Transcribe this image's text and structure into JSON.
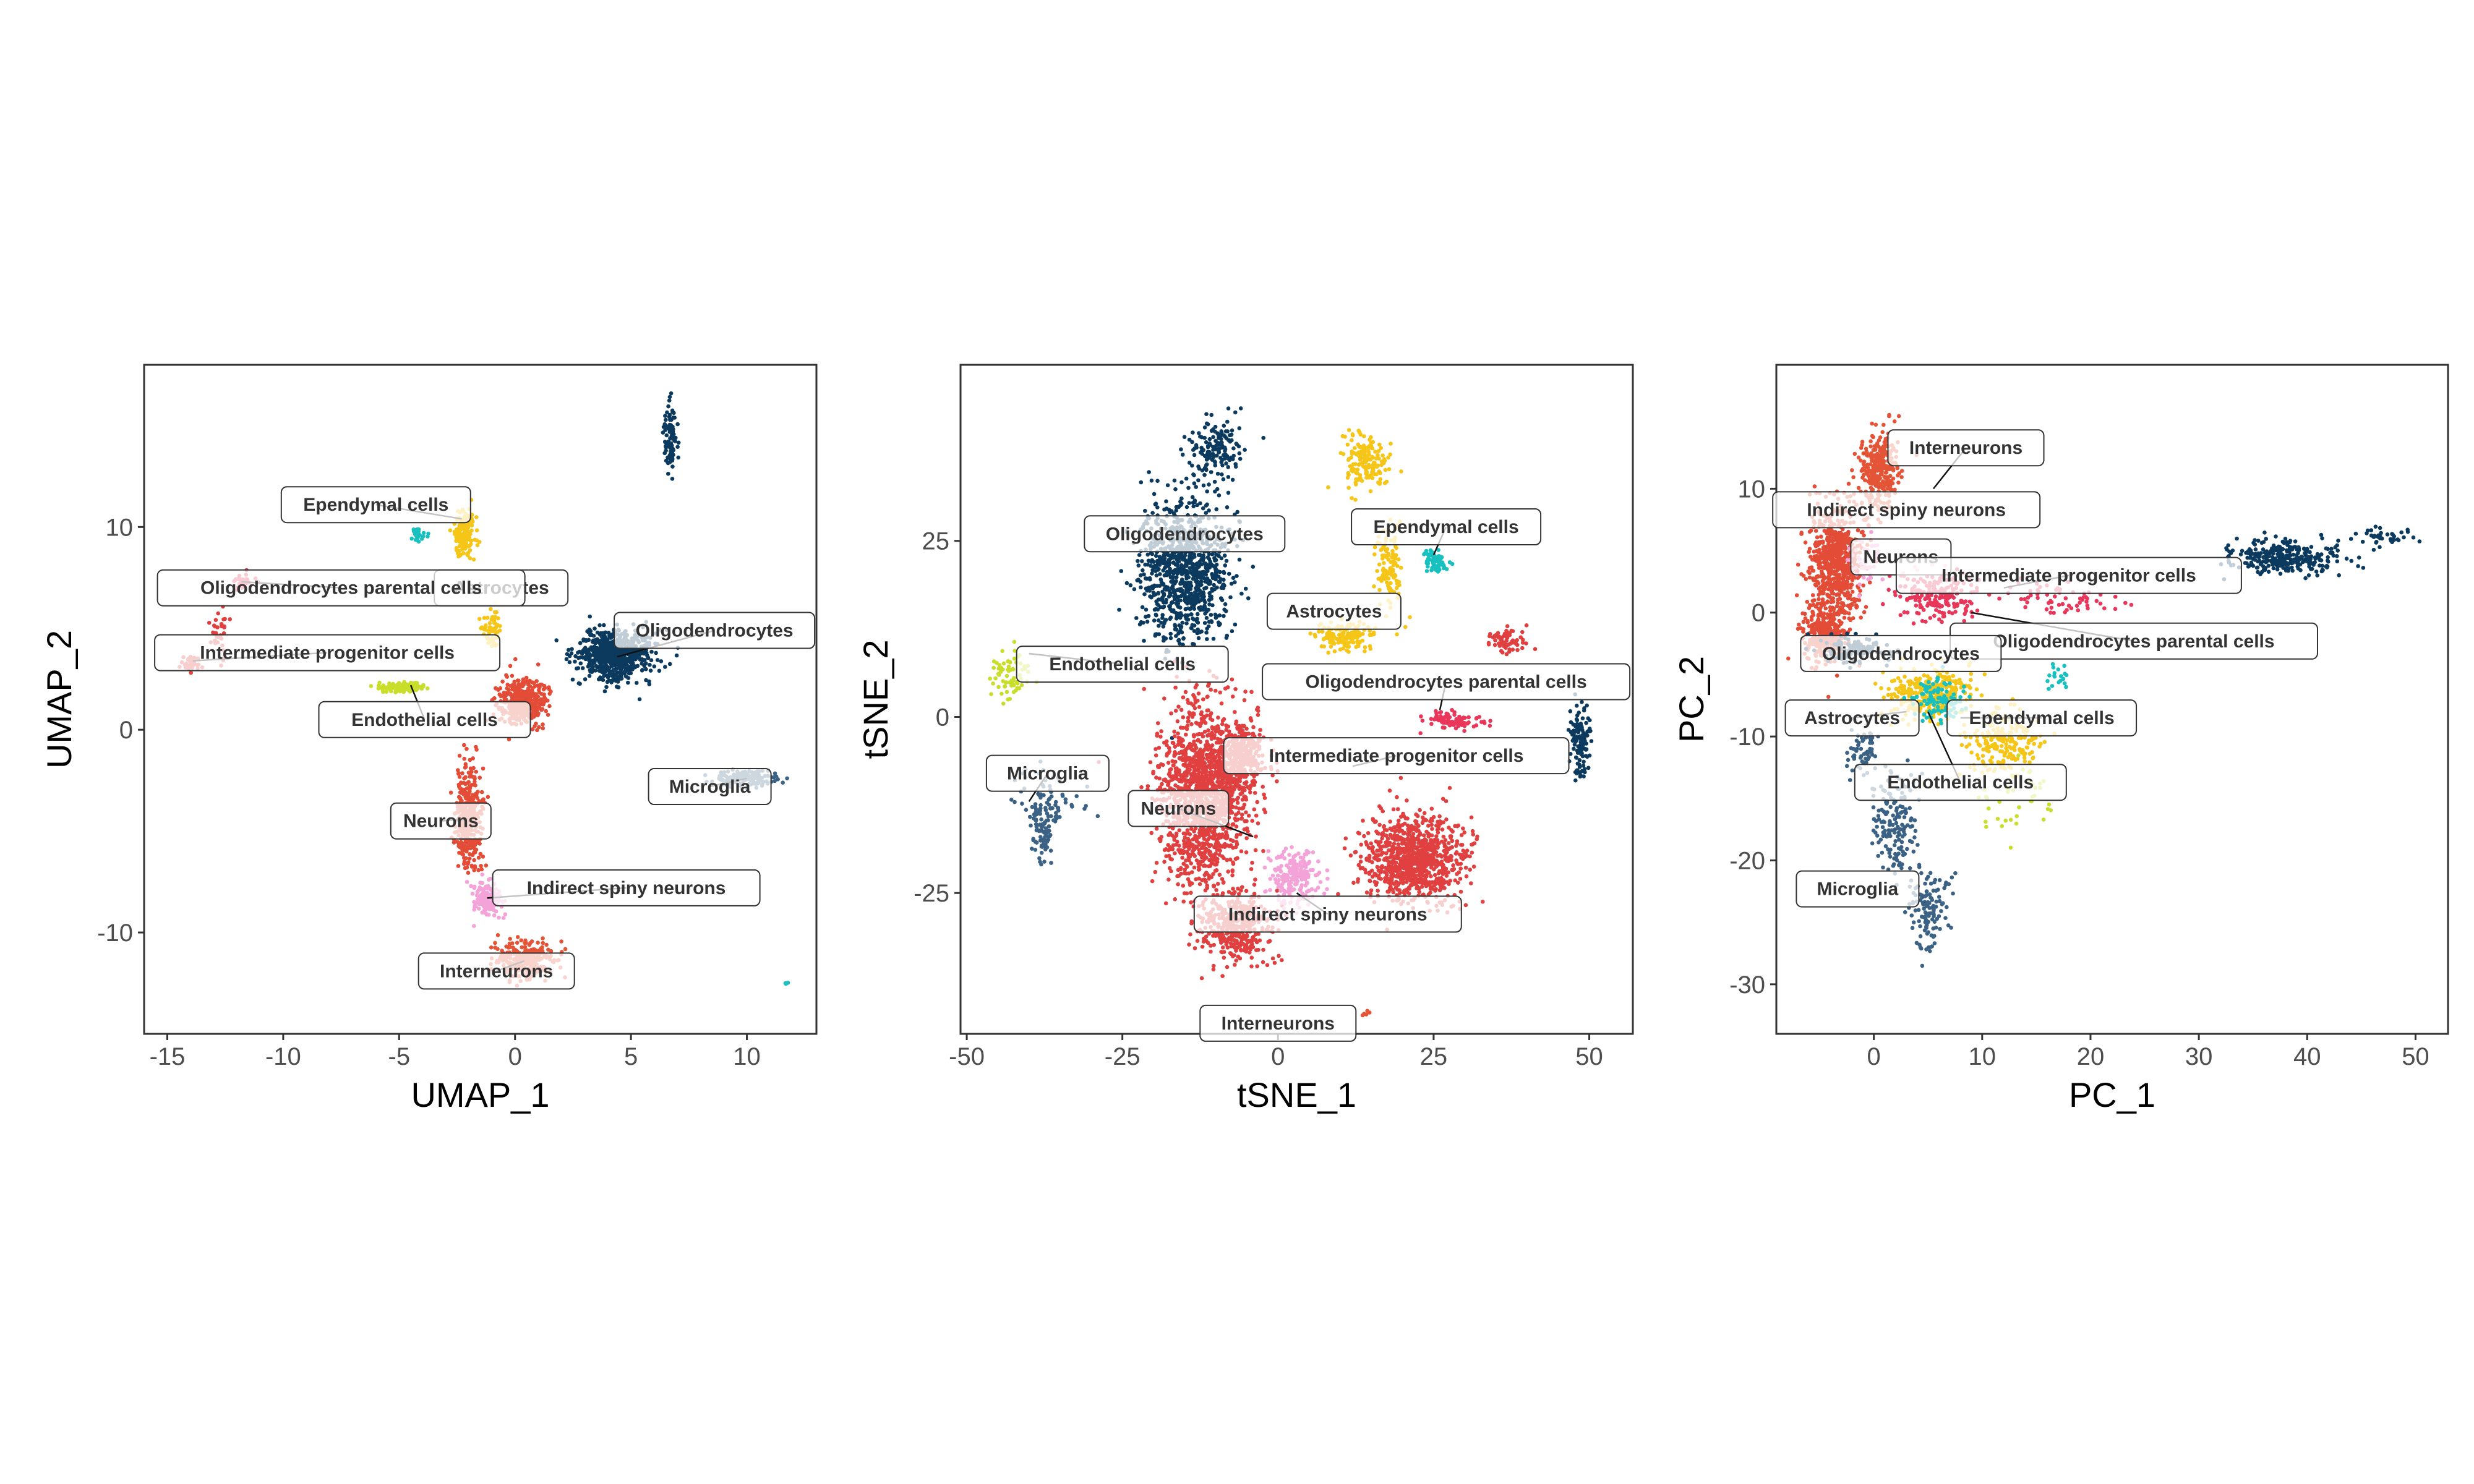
{
  "colors": {
    "Oligodendrocytes": "#0b3a5e",
    "Astrocytes": "#f5c518",
    "Ependymal cells": "#18c0c0",
    "Oligodendrocytes parental cells": "#e8375a",
    "Intermediate progenitor cells": "#e04040",
    "Endothelial cells": "#c8de2a",
    "Neurons": "#e34c36",
    "Indirect spiny neurons": "#f4a3d8",
    "Interneurons": "#e45538",
    "Microglia": "#3b6285"
  },
  "chart_data": [
    {
      "type": "scatter",
      "xlabel": "UMAP_1",
      "ylabel": "UMAP_2",
      "xlim": [
        -16,
        13
      ],
      "ylim": [
        -15,
        18
      ],
      "xticks": [
        "-15",
        "-10",
        "-5",
        "0",
        "5",
        "10"
      ],
      "yticks": [
        "-10",
        "0",
        "10"
      ],
      "clusters": [
        {
          "name": "Oligodendrocytes",
          "center": [
            4.3,
            3.7
          ],
          "spread": [
            1.6,
            1.2
          ],
          "n": 700
        },
        {
          "name": "Oligodendrocytes",
          "center": [
            6.7,
            14.5
          ],
          "spread": [
            0.25,
            1.6
          ],
          "n": 90
        },
        {
          "name": "Astrocytes",
          "center": [
            -2.2,
            9.7
          ],
          "spread": [
            0.45,
            1.3
          ],
          "n": 180
        },
        {
          "name": "Astrocytes",
          "center": [
            -1.0,
            5.0
          ],
          "spread": [
            0.4,
            1.1
          ],
          "n": 60
        },
        {
          "name": "Ependymal cells",
          "center": [
            -4.2,
            9.6
          ],
          "spread": [
            0.35,
            0.3
          ],
          "n": 30
        },
        {
          "name": "Oligodendrocytes parental cells",
          "center": [
            -11.8,
            7.3
          ],
          "spread": [
            0.5,
            0.3
          ],
          "n": 25
        },
        {
          "name": "Intermediate progenitor cells",
          "center": [
            -14.0,
            3.3
          ],
          "spread": [
            0.35,
            0.35
          ],
          "n": 40
        },
        {
          "name": "Intermediate progenitor cells",
          "center": [
            -12.8,
            4.8
          ],
          "spread": [
            0.4,
            1.3
          ],
          "n": 35
        },
        {
          "name": "Endothelial cells",
          "center": [
            -4.8,
            2.1
          ],
          "spread": [
            1.0,
            0.25
          ],
          "n": 120
        },
        {
          "name": "Neurons",
          "center": [
            0.3,
            1.4
          ],
          "spread": [
            1.0,
            1.1
          ],
          "n": 420
        },
        {
          "name": "Neurons",
          "center": [
            -2.0,
            -4.2
          ],
          "spread": [
            0.55,
            2.4
          ],
          "n": 380
        },
        {
          "name": "Indirect spiny neurons",
          "center": [
            -1.2,
            -8.4
          ],
          "spread": [
            0.6,
            0.9
          ],
          "n": 140
        },
        {
          "name": "Interneurons",
          "center": [
            0.5,
            -11.4
          ],
          "spread": [
            1.2,
            0.9
          ],
          "n": 280
        },
        {
          "name": "Microglia",
          "center": [
            10.0,
            -2.4
          ],
          "spread": [
            1.4,
            0.4
          ],
          "n": 150
        },
        {
          "name": "Ependymal cells",
          "center": [
            11.7,
            -12.5
          ],
          "spread": [
            0.06,
            0.06
          ],
          "n": 3
        }
      ],
      "labels": [
        {
          "text": "Ependymal cells",
          "pos": [
            -6.0,
            11.1
          ],
          "target": [
            -2.3,
            10.4
          ]
        },
        {
          "text": "Astrocytes",
          "pos": [
            -0.6,
            7.0
          ],
          "target": [
            -1.4,
            6.8
          ]
        },
        {
          "text": "Oligodendrocytes parental cells",
          "pos": [
            -7.5,
            7.0
          ],
          "target": [
            -11.8,
            7.3
          ]
        },
        {
          "text": "Oligodendrocytes",
          "pos": [
            8.6,
            4.9
          ],
          "target": [
            4.4,
            3.6
          ]
        },
        {
          "text": "Intermediate progenitor cells",
          "pos": [
            -8.1,
            3.8
          ],
          "target": [
            -13.9,
            3.4
          ]
        },
        {
          "text": "Endothelial cells",
          "pos": [
            -3.9,
            0.5
          ],
          "target": [
            -4.5,
            2.2
          ]
        },
        {
          "text": "Microglia",
          "pos": [
            8.4,
            -2.8
          ],
          "target": [
            10.0,
            -2.4
          ]
        },
        {
          "text": "Neurons",
          "pos": [
            -3.2,
            -4.5
          ],
          "target": [
            -2.1,
            -4.4
          ]
        },
        {
          "text": "Indirect spiny neurons",
          "pos": [
            4.8,
            -7.8
          ],
          "target": [
            -1.2,
            -8.3
          ]
        },
        {
          "text": "Interneurons",
          "pos": [
            -0.8,
            -11.9
          ],
          "target": [
            0.4,
            -11.4
          ]
        }
      ]
    },
    {
      "type": "scatter",
      "xlabel": "tSNE_1",
      "ylabel": "tSNE_2",
      "xlim": [
        -51,
        57
      ],
      "ylim": [
        -45,
        50
      ],
      "xticks": [
        "-50",
        "-25",
        "0",
        "25",
        "50"
      ],
      "yticks": [
        "-25",
        "0",
        "25"
      ],
      "clusters": [
        {
          "name": "Oligodendrocytes",
          "center": [
            -15.0,
            21.0
          ],
          "spread": [
            7.0,
            10.0
          ],
          "n": 1000
        },
        {
          "name": "Oligodendrocytes",
          "center": [
            -10.0,
            38.0
          ],
          "spread": [
            4.0,
            4.0
          ],
          "n": 150
        },
        {
          "name": "Oligodendrocytes",
          "center": [
            48.5,
            -3.0
          ],
          "spread": [
            1.8,
            5.0
          ],
          "n": 120
        },
        {
          "name": "Astrocytes",
          "center": [
            14.0,
            36.0
          ],
          "spread": [
            3.5,
            4.0
          ],
          "n": 160
        },
        {
          "name": "Astrocytes",
          "center": [
            18.0,
            21.0
          ],
          "spread": [
            2.0,
            6.0
          ],
          "n": 110
        },
        {
          "name": "Astrocytes",
          "center": [
            11.0,
            11.5
          ],
          "spread": [
            5.0,
            2.0
          ],
          "n": 140
        },
        {
          "name": "Ependymal cells",
          "center": [
            25.5,
            22.0
          ],
          "spread": [
            1.8,
            1.5
          ],
          "n": 70
        },
        {
          "name": "Oligodendrocytes parental cells",
          "center": [
            28.0,
            -0.5
          ],
          "spread": [
            4.5,
            1.3
          ],
          "n": 90
        },
        {
          "name": "Intermediate progenitor cells",
          "center": [
            37.0,
            11.0
          ],
          "spread": [
            3.0,
            2.0
          ],
          "n": 70
        },
        {
          "name": "Intermediate progenitor cells",
          "center": [
            -12.0,
            -11.0
          ],
          "spread": [
            7.0,
            12.0
          ],
          "n": 1500
        },
        {
          "name": "Intermediate progenitor cells",
          "center": [
            -6.0,
            -6.0
          ],
          "spread": [
            4.0,
            5.0
          ],
          "n": 300
        },
        {
          "name": "Intermediate progenitor cells",
          "center": [
            22.0,
            -20.0
          ],
          "spread": [
            8.0,
            6.0
          ],
          "n": 900
        },
        {
          "name": "Intermediate progenitor cells",
          "center": [
            -7.0,
            -30.0
          ],
          "spread": [
            5.5,
            5.0
          ],
          "n": 400
        },
        {
          "name": "Interneurons",
          "center": [
            14.0,
            -42.0
          ],
          "spread": [
            0.6,
            0.6
          ],
          "n": 6
        },
        {
          "name": "Indirect spiny neurons",
          "center": [
            3.0,
            -23.0
          ],
          "spread": [
            4.0,
            4.0
          ],
          "n": 220
        },
        {
          "name": "Endothelial cells",
          "center": [
            -43.0,
            6.0
          ],
          "spread": [
            3.0,
            3.5
          ],
          "n": 70
        },
        {
          "name": "Microglia",
          "center": [
            -37.0,
            -12.0
          ],
          "spread": [
            5.5,
            5.0
          ],
          "n": 70
        },
        {
          "name": "Microglia",
          "center": [
            -38.0,
            -16.0
          ],
          "spread": [
            1.6,
            5.0
          ],
          "n": 80
        }
      ],
      "labels": [
        {
          "text": "Oligodendrocytes",
          "pos": [
            -15.0,
            26.0
          ],
          "target": [
            -13.0,
            24.0
          ]
        },
        {
          "text": "Ependymal cells",
          "pos": [
            27.0,
            27.0
          ],
          "target": [
            25.0,
            23.0
          ]
        },
        {
          "text": "Astrocytes",
          "pos": [
            9.0,
            15.0
          ],
          "target": [
            10.0,
            12.0
          ]
        },
        {
          "text": "Endothelial cells",
          "pos": [
            -25.0,
            7.5
          ],
          "target": [
            -40.0,
            9.0
          ]
        },
        {
          "text": "Oligodendrocytes parental cells",
          "pos": [
            27.0,
            5.0
          ],
          "target": [
            26.0,
            1.0
          ]
        },
        {
          "text": "Intermediate progenitor cells",
          "pos": [
            19.0,
            -5.5
          ],
          "target": [
            12.0,
            -7.0
          ]
        },
        {
          "text": "Microglia",
          "pos": [
            -37.0,
            -8.0
          ],
          "target": [
            -40.0,
            -12.0
          ]
        },
        {
          "text": "Neurons",
          "pos": [
            -16.0,
            -13.0
          ],
          "target": [
            -4.0,
            -17.0
          ]
        },
        {
          "text": "Indirect spiny neurons",
          "pos": [
            8.0,
            -28.0
          ],
          "target": [
            3.0,
            -25.0
          ]
        },
        {
          "text": "Interneurons",
          "pos": [
            0.0,
            -43.5
          ],
          "target": [
            0.0,
            -43.5
          ]
        }
      ]
    },
    {
      "type": "scatter",
      "xlabel": "PC_1",
      "ylabel": "PC_2",
      "xlim": [
        -9,
        53
      ],
      "ylim": [
        -34,
        20
      ],
      "xticks": [
        "0",
        "10",
        "20",
        "30",
        "40",
        "50"
      ],
      "yticks": [
        "-30",
        "-20",
        "-10",
        "0",
        "10"
      ],
      "clusters": [
        {
          "name": "Neurons",
          "center": [
            -3.5,
            4.0
          ],
          "spread": [
            2.4,
            4.5
          ],
          "n": 700
        },
        {
          "name": "Interneurons",
          "center": [
            0.5,
            11.5
          ],
          "spread": [
            1.8,
            3.0
          ],
          "n": 300
        },
        {
          "name": "Neurons",
          "center": [
            -4.5,
            -2.0
          ],
          "spread": [
            2.0,
            2.0
          ],
          "n": 300
        },
        {
          "name": "Oligodendrocytes parental cells",
          "center": [
            6.0,
            1.5
          ],
          "spread": [
            4.0,
            2.0
          ],
          "n": 200
        },
        {
          "name": "Oligodendrocytes parental cells",
          "center": [
            18.0,
            1.0
          ],
          "spread": [
            5.0,
            1.3
          ],
          "n": 60
        },
        {
          "name": "Oligodendrocytes",
          "center": [
            38.0,
            4.5
          ],
          "spread": [
            5.0,
            1.3
          ],
          "n": 300
        },
        {
          "name": "Oligodendrocytes",
          "center": [
            47.0,
            6.0
          ],
          "spread": [
            3.0,
            0.8
          ],
          "n": 40
        },
        {
          "name": "Oligodendrocytes",
          "center": [
            -2.0,
            -3.0
          ],
          "spread": [
            3.0,
            1.0
          ],
          "n": 120
        },
        {
          "name": "Astrocytes",
          "center": [
            5.0,
            -6.5
          ],
          "spread": [
            4.0,
            2.0
          ],
          "n": 300
        },
        {
          "name": "Astrocytes",
          "center": [
            12.0,
            -10.5
          ],
          "spread": [
            3.5,
            2.5
          ],
          "n": 200
        },
        {
          "name": "Ependymal cells",
          "center": [
            6.0,
            -7.0
          ],
          "spread": [
            2.5,
            1.8
          ],
          "n": 100
        },
        {
          "name": "Ependymal cells",
          "center": [
            17.0,
            -5.5
          ],
          "spread": [
            1.5,
            1.0
          ],
          "n": 20
        },
        {
          "name": "Endothelial cells",
          "center": [
            13.0,
            -15.0
          ],
          "spread": [
            3.5,
            3.0
          ],
          "n": 40
        },
        {
          "name": "Microglia",
          "center": [
            2.0,
            -17.0
          ],
          "spread": [
            2.0,
            4.0
          ],
          "n": 160
        },
        {
          "name": "Microglia",
          "center": [
            5.0,
            -24.0
          ],
          "spread": [
            2.0,
            3.0
          ],
          "n": 120
        },
        {
          "name": "Microglia",
          "center": [
            -1.0,
            -11.0
          ],
          "spread": [
            1.5,
            2.5
          ],
          "n": 60
        },
        {
          "name": "Indirect spiny neurons",
          "center": [
            -1.0,
            4.0
          ],
          "spread": [
            1.5,
            2.0
          ],
          "n": 40
        }
      ],
      "labels": [
        {
          "text": "Interneurons",
          "pos": [
            8.5,
            13.3
          ],
          "target": [
            5.5,
            10.0
          ]
        },
        {
          "text": "Indirect spiny neurons",
          "pos": [
            3.0,
            8.3
          ],
          "target": [
            3.0,
            8.3
          ]
        },
        {
          "text": "Neurons",
          "pos": [
            2.5,
            4.5
          ],
          "target": [
            2.5,
            4.5
          ]
        },
        {
          "text": "Intermediate progenitor cells",
          "pos": [
            18.0,
            3.0
          ],
          "target": [
            12.0,
            2.0
          ]
        },
        {
          "text": "Oligodendrocytes parental cells",
          "pos": [
            24.0,
            -2.3
          ],
          "target": [
            9.0,
            0.0
          ]
        },
        {
          "text": "Oligodendrocytes",
          "pos": [
            2.5,
            -3.3
          ],
          "target": [
            2.5,
            -3.3
          ]
        },
        {
          "text": "Astrocytes",
          "pos": [
            -2.0,
            -8.5
          ],
          "target": [
            3.0,
            -8.0
          ]
        },
        {
          "text": "Ependymal cells",
          "pos": [
            15.5,
            -8.5
          ],
          "target": [
            8.0,
            -8.5
          ]
        },
        {
          "text": "Endothelial cells",
          "pos": [
            8.0,
            -13.7
          ],
          "target": [
            5.0,
            -8.0
          ]
        },
        {
          "text": "Microglia",
          "pos": [
            -1.5,
            -22.3
          ],
          "target": [
            -1.5,
            -22.3
          ]
        }
      ]
    }
  ]
}
